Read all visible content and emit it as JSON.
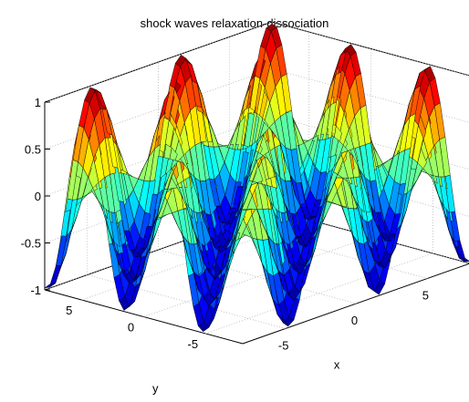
{
  "chart_data": {
    "type": "surface",
    "title": "shock waves relaxation-dissociation",
    "xlabel": "x",
    "ylabel": "y",
    "zlabel": "",
    "xlim": [
      -8,
      8
    ],
    "ylim": [
      -8,
      8
    ],
    "zlim": [
      -1,
      1
    ],
    "x_ticks": [
      -5,
      0,
      5
    ],
    "y_ticks": [
      -5,
      0,
      5
    ],
    "z_ticks": [
      -1,
      -0.5,
      0,
      0.5,
      1
    ],
    "x_tick_labels": [
      "-5",
      "0",
      "5"
    ],
    "y_tick_labels": [
      "-5",
      "0",
      "5"
    ],
    "z_tick_labels": [
      "-1",
      "-0.5",
      "0",
      "0.5",
      "1"
    ],
    "function": "z = sin(x) * sin(y)",
    "grid": true,
    "colormap": "jet",
    "colormap_colors": [
      "#00008f",
      "#0000ff",
      "#0080ff",
      "#00ffff",
      "#80ff80",
      "#ffff00",
      "#ff8000",
      "#ff0000",
      "#800000"
    ],
    "edge_color": "#000000"
  }
}
